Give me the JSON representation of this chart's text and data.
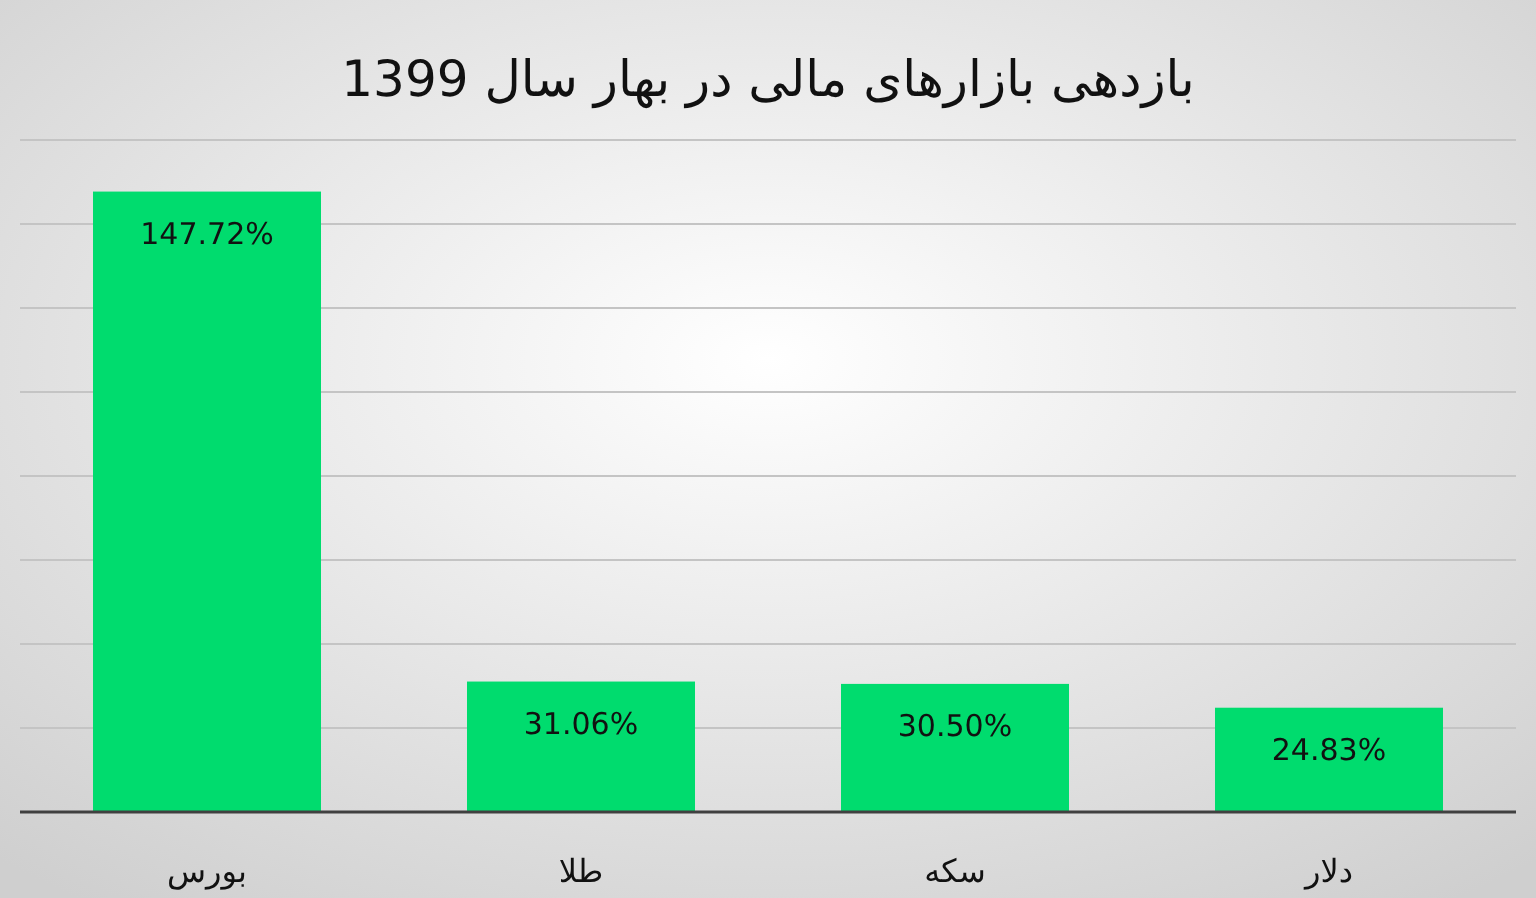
{
  "chart_data": {
    "type": "bar",
    "title": "بازدهی بازارهای مالی در بهار سال 1399",
    "categories": [
      "بورس",
      "طلا",
      "سکه",
      "دلار"
    ],
    "values": [
      147.72,
      31.06,
      30.5,
      24.83
    ],
    "value_labels": [
      "147.72%",
      "31.06%",
      "30.50%",
      "24.83%"
    ],
    "color": "#00dc6e",
    "ylim": [
      0,
      160
    ],
    "yticks": [
      {
        "value": 0,
        "label": null
      },
      {
        "value": 20,
        "label": null
      },
      {
        "value": 40,
        "label": null
      },
      {
        "value": 60,
        "label": null
      },
      {
        "value": 80,
        "label": null
      },
      {
        "value": 100,
        "label": null
      },
      {
        "value": 120,
        "label": null
      },
      {
        "value": 140,
        "label": null
      },
      {
        "value": 160,
        "label": null
      }
    ],
    "grid": "y"
  }
}
